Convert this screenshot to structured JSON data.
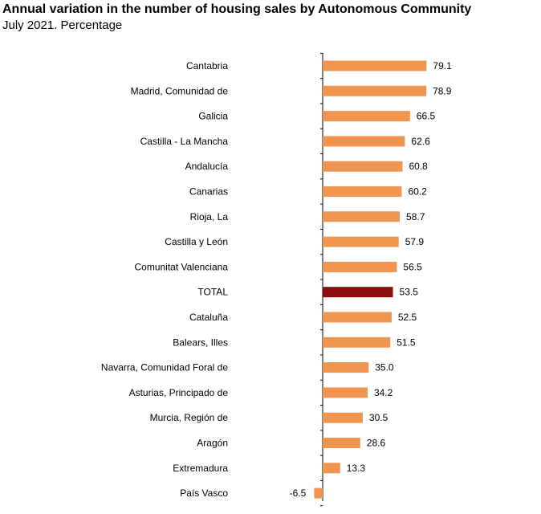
{
  "header": {
    "title": "Annual variation in the number of housing sales by Autonomous Community",
    "subtitle": "July 2021. Percentage"
  },
  "colors": {
    "bar": "#F0954F",
    "total_bar": "#8B0D0D",
    "axis": "#000000"
  },
  "chart_data": {
    "type": "bar",
    "orientation": "horizontal",
    "title": "Annual variation in the number of housing sales by Autonomous Community",
    "subtitle": "July 2021. Percentage",
    "xlabel": "",
    "ylabel": "",
    "xlim": [
      -6.5,
      79.1
    ],
    "grid": false,
    "highlight": "TOTAL",
    "categories": [
      "Cantabria",
      "Madrid, Comunidad de",
      "Galicia",
      "Castilla - La Mancha",
      "Andalucía",
      "Canarias",
      "Rioja, La",
      "Castilla y León",
      "Comunitat Valenciana",
      "TOTAL",
      "Cataluña",
      "Balears, Illes",
      "Navarra, Comunidad Foral de",
      "Asturias, Principado de",
      "Murcia, Región de",
      "Aragón",
      "Extremadura",
      "País Vasco"
    ],
    "values": [
      79.1,
      78.9,
      66.5,
      62.6,
      60.8,
      60.2,
      58.7,
      57.9,
      56.5,
      53.5,
      52.5,
      51.5,
      35.0,
      34.2,
      30.5,
      28.6,
      13.3,
      -6.5
    ],
    "data_labels": [
      "79.1",
      "78.9",
      "66.5",
      "62.6",
      "60.8",
      "60.2",
      "58.7",
      "57.9",
      "56.5",
      "53.5",
      "52.5",
      "51.5",
      "35.0",
      "34.2",
      "30.5",
      "28.6",
      "13.3",
      "-6.5"
    ]
  }
}
